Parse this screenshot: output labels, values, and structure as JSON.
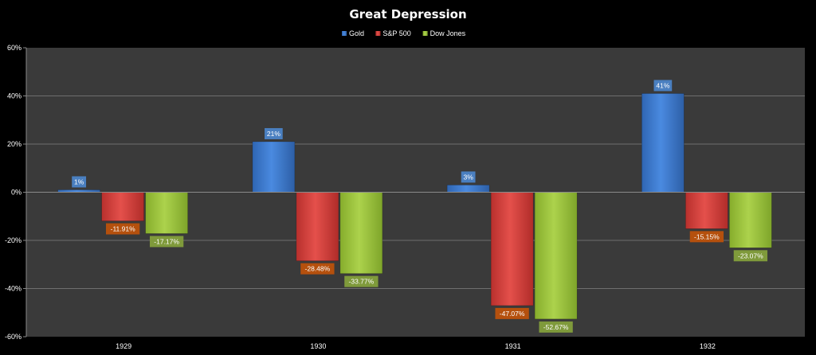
{
  "chart_data": {
    "type": "bar",
    "title": "Great Depression",
    "categories": [
      "1929",
      "1930",
      "1931",
      "1932"
    ],
    "series": [
      {
        "name": "Gold",
        "values": [
          1,
          21,
          3,
          41
        ],
        "labels": [
          "1%",
          "21%",
          "3%",
          "41%"
        ]
      },
      {
        "name": "S&P 500",
        "values": [
          -11.91,
          -28.48,
          -47.07,
          -15.15
        ],
        "labels": [
          "-11.91%",
          "-28.48%",
          "-47.07%",
          "-15.15%"
        ]
      },
      {
        "name": "Dow Jones",
        "values": [
          -17.17,
          -33.77,
          -52.67,
          -23.07
        ],
        "labels": [
          "-17.17%",
          "-33.77%",
          "-52.67%",
          "-23.07%"
        ]
      }
    ],
    "yticks": [
      "60%",
      "40%",
      "20%",
      "0%",
      "-20%",
      "-40%",
      "-60%"
    ],
    "ylim": [
      -60,
      60
    ],
    "xlabel": "",
    "ylabel": "",
    "grid": true,
    "legend": "top-center",
    "colors": {
      "background": "#000000",
      "plot_area": "#3a3a3a",
      "gridline": "#6e6e6e",
      "Gold": "#3f7fd1",
      "S&P 500": "#d9403c",
      "Dow Jones": "#9cc43e",
      "Gold_label": "#4a7fc0",
      "S&P 500_label": "#b5500d",
      "Dow Jones_label": "#7f9a3b"
    }
  }
}
